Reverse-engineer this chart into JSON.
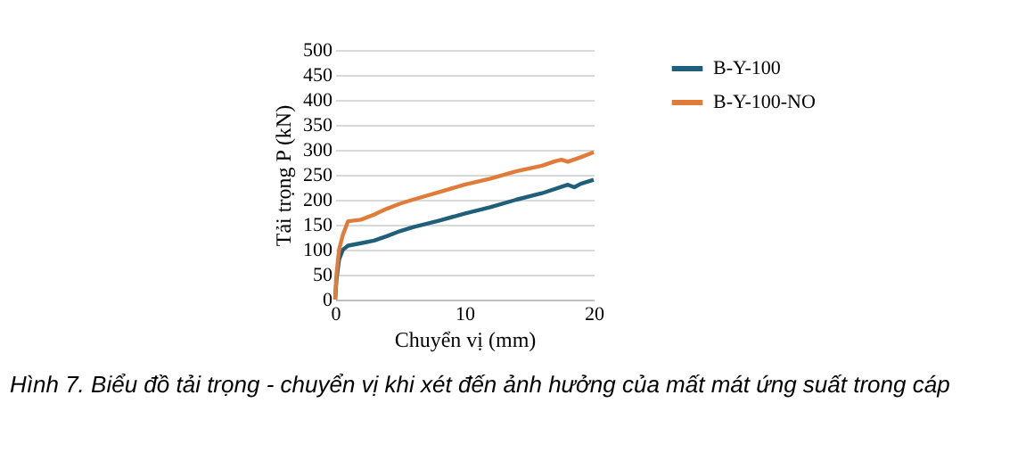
{
  "chart_data": {
    "type": "line",
    "xlabel": "Chuyển vị (mm)",
    "ylabel": "Tải trọng P (kN)",
    "xlim": [
      0,
      20
    ],
    "xticks": [
      0,
      10,
      20
    ],
    "ylim": [
      0,
      500
    ],
    "yticks": [
      0,
      50,
      100,
      150,
      200,
      250,
      300,
      350,
      400,
      450,
      500
    ],
    "grid": "y",
    "legend": "right",
    "marker": "none",
    "line_style": "solid",
    "annotations": [
      "Hình 7. Biểu đồ tải trọng - chuyển vị khi xét đến ảnh hưởng của mất mát ứng suất trong cáp"
    ],
    "series": [
      {
        "name": "B-Y-100",
        "color": "#1f5f7a",
        "x": [
          0,
          0.1,
          0.3,
          0.6,
          1,
          2,
          3,
          4,
          5,
          6,
          8,
          10,
          12,
          14,
          16,
          18,
          18.5,
          19,
          20
        ],
        "values": [
          0,
          40,
          80,
          100,
          108,
          113,
          118,
          127,
          137,
          145,
          158,
          172,
          185,
          200,
          213,
          230,
          225,
          232,
          240
        ]
      },
      {
        "name": "B-Y-100-NO",
        "color": "#e07b39",
        "x": [
          0,
          0.1,
          0.3,
          0.6,
          1,
          2,
          3,
          4,
          5,
          6,
          8,
          10,
          12,
          14,
          16,
          17,
          17.5,
          18,
          19,
          20
        ],
        "values": [
          0,
          50,
          100,
          130,
          157,
          160,
          170,
          182,
          192,
          200,
          215,
          230,
          242,
          257,
          268,
          277,
          280,
          276,
          285,
          295
        ]
      }
    ]
  }
}
